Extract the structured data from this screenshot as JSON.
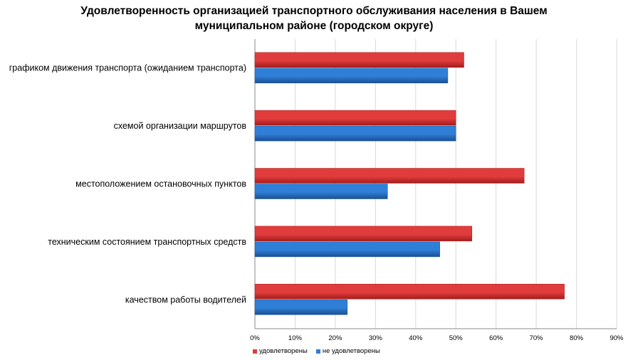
{
  "title": {
    "line1": "Удовлетворенность организацией транспортного обслуживания населения в Вашем",
    "line2": "муниципальном районе (городском округе)"
  },
  "colors": {
    "satisfied": "#e03c3c",
    "satisfied_dark": "#a31c1c",
    "unsatisfied": "#2f7fd6",
    "unsatisfied_dark": "#1a4f95",
    "grid": "#d9d9d9",
    "axis": "#888888"
  },
  "chart_data": {
    "type": "bar",
    "orientation": "horizontal",
    "categories": [
      "графиком движения транспорта (ожиданием транспорта)",
      "схемой организации маршрутов",
      "местоположением остановочных пунктов",
      "техническим состоянием транспортных средств",
      "качеством работы водителей"
    ],
    "series": [
      {
        "name": "удовлетворены",
        "values": [
          52,
          50,
          67,
          54,
          77
        ]
      },
      {
        "name": "не удовлетворены",
        "values": [
          48,
          50,
          33,
          46,
          23
        ]
      }
    ],
    "xlim": [
      0,
      90
    ],
    "xticks": [
      "0%",
      "10%",
      "20%",
      "30%",
      "40%",
      "50%",
      "60%",
      "70%",
      "80%",
      "90%"
    ],
    "legend_position": "bottom-left",
    "grid": true
  }
}
